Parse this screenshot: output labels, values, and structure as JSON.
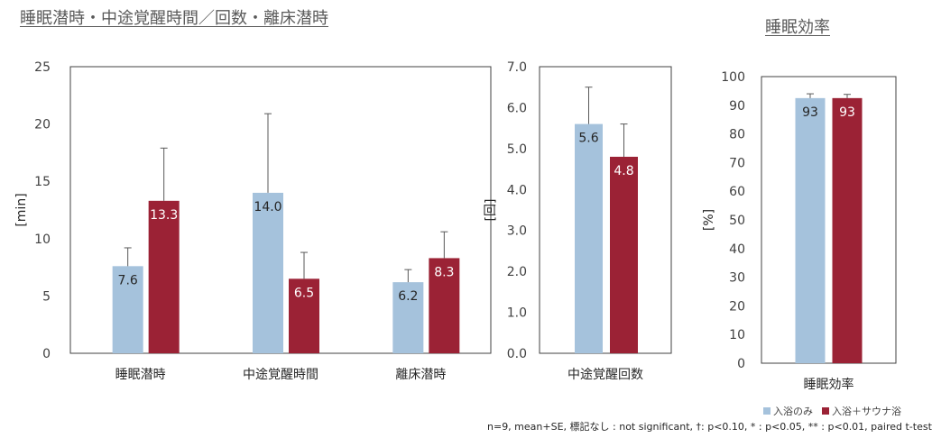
{
  "titles": {
    "left": "睡眠潜時・中途覚醒時間／回数・離床潜時",
    "right": "睡眠効率"
  },
  "colors": {
    "series_a": "#a5c2dc",
    "series_b": "#9b2235"
  },
  "legend": {
    "a": "入浴のみ",
    "b": "入浴＋サウナ浴"
  },
  "footnote": "n=9, mean+SE, 標記なし : not significant, †: p<0.10, * : p<0.05, ** : p<0.01, paired t-test",
  "chart_data": [
    {
      "type": "bar",
      "ylabel": "[min]",
      "ylim": [
        0,
        25
      ],
      "yticks": [
        "0",
        "5",
        "10",
        "15",
        "20",
        "25"
      ],
      "categories": [
        "睡眠潜時",
        "中途覚醒時間",
        "離床潜時"
      ],
      "series": [
        {
          "name": "入浴のみ",
          "values": [
            7.6,
            14.0,
            6.2
          ],
          "labels": [
            "7.6",
            "14.0",
            "6.2"
          ],
          "errors": [
            1.6,
            6.9,
            1.1
          ]
        },
        {
          "name": "入浴＋サウナ浴",
          "values": [
            13.3,
            6.5,
            8.3
          ],
          "labels": [
            "13.3",
            "6.5",
            "8.3"
          ],
          "errors": [
            4.6,
            2.3,
            2.3
          ]
        }
      ]
    },
    {
      "type": "bar",
      "ylabel": "[回]",
      "ylim": [
        0,
        7
      ],
      "yticks": [
        "0.0",
        "1.0",
        "2.0",
        "3.0",
        "4.0",
        "5.0",
        "6.0",
        "7.0"
      ],
      "categories": [
        "中途覚醒回数"
      ],
      "series": [
        {
          "name": "入浴のみ",
          "values": [
            5.6
          ],
          "labels": [
            "5.6"
          ],
          "errors": [
            0.9
          ]
        },
        {
          "name": "入浴＋サウナ浴",
          "values": [
            4.8
          ],
          "labels": [
            "4.8"
          ],
          "errors": [
            0.8
          ]
        }
      ]
    },
    {
      "type": "bar",
      "ylabel": "[%]",
      "ylim": [
        0,
        100
      ],
      "yticks": [
        "0",
        "10",
        "20",
        "30",
        "40",
        "50",
        "60",
        "70",
        "80",
        "90",
        "100"
      ],
      "categories": [
        "睡眠効率"
      ],
      "series": [
        {
          "name": "入浴のみ",
          "values": [
            92.5
          ],
          "labels": [
            "93"
          ],
          "errors": [
            1.5
          ]
        },
        {
          "name": "入浴＋サウナ浴",
          "values": [
            92.5
          ],
          "labels": [
            "93"
          ],
          "errors": [
            1.3
          ]
        }
      ]
    }
  ]
}
